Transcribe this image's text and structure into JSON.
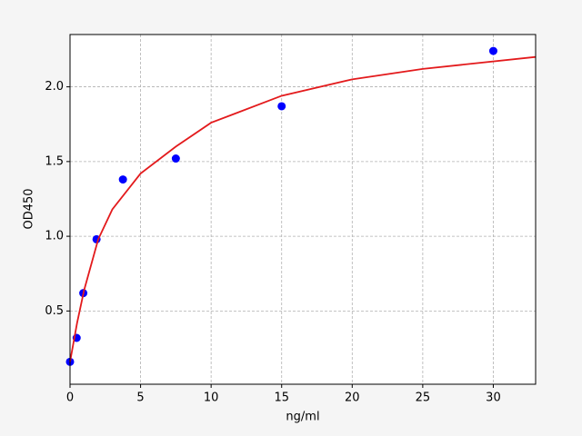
{
  "chart_data": {
    "type": "scatter",
    "xlabel": "ng/ml",
    "ylabel": "OD450",
    "xlim": [
      0,
      33
    ],
    "ylim": [
      0.01,
      2.35
    ],
    "xticks": [
      0,
      5,
      10,
      15,
      20,
      25,
      30
    ],
    "yticks": [
      0.5,
      {
        "value": 1.0,
        "label": "1.0"
      },
      1.5,
      {
        "value": 2.0,
        "label": "2.0"
      }
    ],
    "grid": true,
    "series": [
      {
        "mode": "markers",
        "color": "#0000ff",
        "x": [
          0,
          0.47,
          0.94,
          1.88,
          3.75,
          7.5,
          15,
          30
        ],
        "values": [
          0.16,
          0.32,
          0.62,
          0.98,
          1.38,
          1.52,
          1.87,
          2.24
        ]
      },
      {
        "mode": "line",
        "color": "#e31a1c",
        "x": [
          0,
          0.5,
          1,
          2,
          3,
          5,
          7.5,
          10,
          15,
          20,
          25,
          33
        ],
        "values": [
          0.16,
          0.42,
          0.64,
          0.98,
          1.18,
          1.42,
          1.6,
          1.76,
          1.94,
          2.05,
          2.12,
          2.2
        ]
      }
    ]
  }
}
